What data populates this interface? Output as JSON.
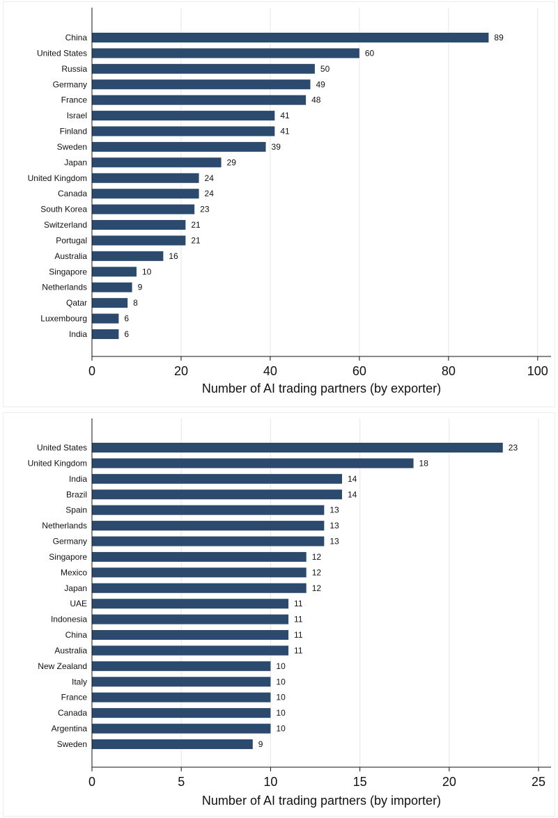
{
  "chart_data": [
    {
      "type": "bar",
      "orientation": "horizontal",
      "categories": [
        "China",
        "United States",
        "Russia",
        "Germany",
        "France",
        "Israel",
        "Finland",
        "Sweden",
        "Japan",
        "United Kingdom",
        "Canada",
        "South Korea",
        "Switzerland",
        "Portugal",
        "Australia",
        "Singapore",
        "Netherlands",
        "Qatar",
        "Luxembourg",
        "India"
      ],
      "values": [
        89,
        60,
        50,
        49,
        48,
        41,
        41,
        39,
        29,
        24,
        24,
        23,
        21,
        21,
        16,
        10,
        9,
        8,
        6,
        6
      ],
      "xlabel": "Number of AI trading partners (by exporter)",
      "xlim": [
        0,
        103
      ],
      "xticks": [
        0,
        20,
        40,
        60,
        80,
        100
      ],
      "grid": true,
      "bar_color": "#2b4a6e"
    },
    {
      "type": "bar",
      "orientation": "horizontal",
      "categories": [
        "United States",
        "United Kingdom",
        "India",
        "Brazil",
        "Spain",
        "Netherlands",
        "Germany",
        "Singapore",
        "Mexico",
        "Japan",
        "UAE",
        "Indonesia",
        "China",
        "Australia",
        "New Zealand",
        "Italy",
        "France",
        "Canada",
        "Argentina",
        "Sweden"
      ],
      "values": [
        23,
        18,
        14,
        14,
        13,
        13,
        13,
        12,
        12,
        12,
        11,
        11,
        11,
        11,
        10,
        10,
        10,
        10,
        10,
        9
      ],
      "xlabel": "Number of AI trading partners (by importer)",
      "xlim": [
        0,
        25.7
      ],
      "xticks": [
        0,
        5,
        10,
        15,
        20,
        25
      ],
      "grid": true,
      "bar_color": "#2b4a6e"
    }
  ]
}
